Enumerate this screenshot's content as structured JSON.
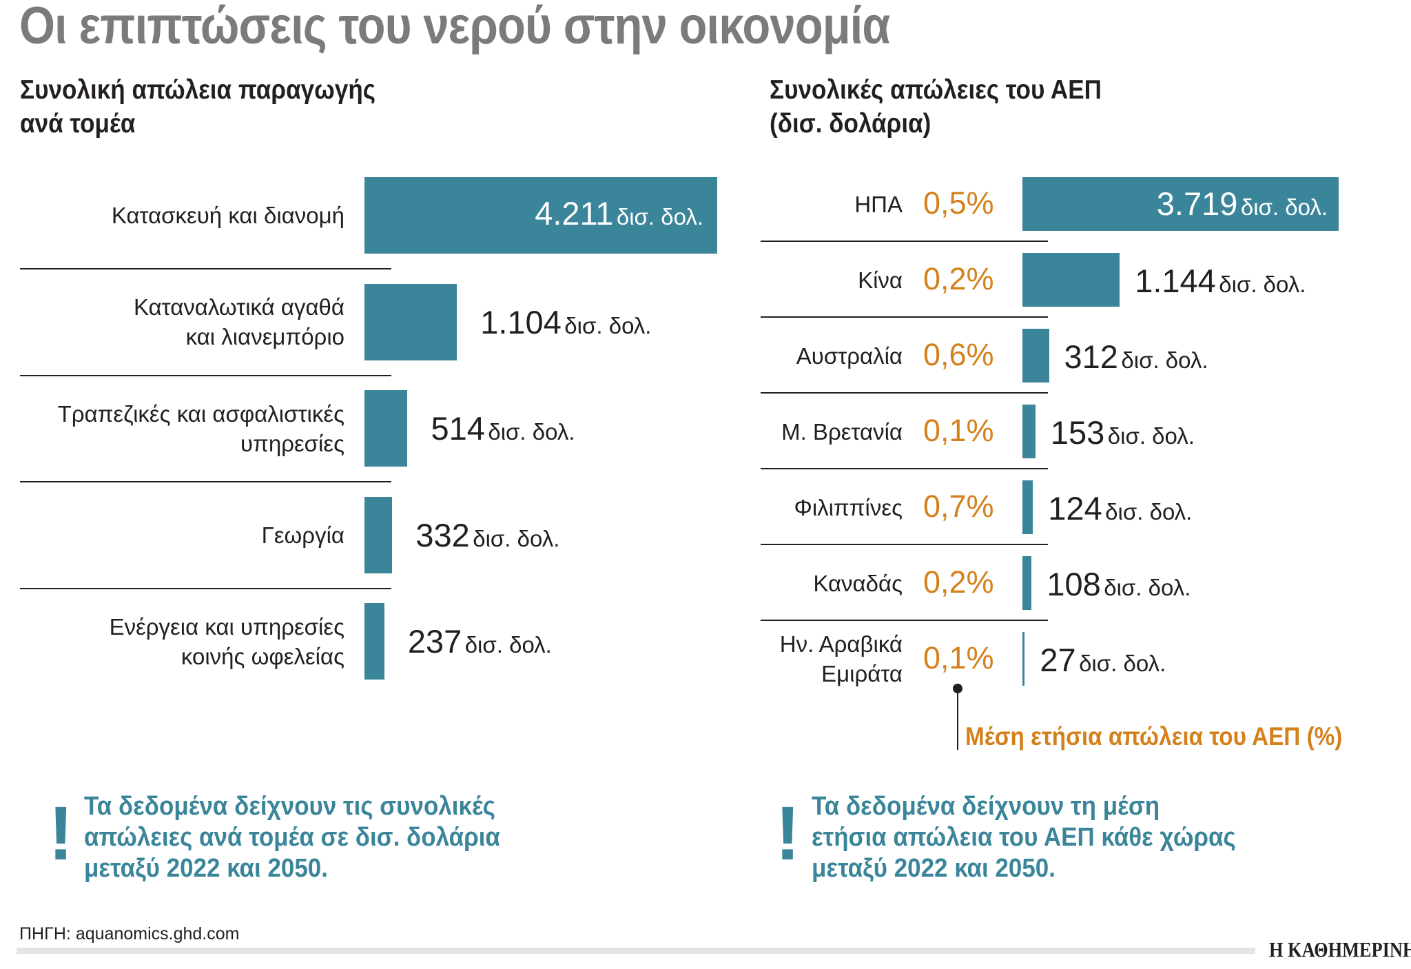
{
  "title": "Οι επιπτώσεις του νερού στην οικονομία",
  "chart_data": [
    {
      "type": "bar",
      "orientation": "horizontal",
      "title_line1": "Συνολική απώλεια παραγωγής",
      "title_line2": "ανά τομέα",
      "unit": "δισ. δολ.",
      "bar_color": "#3a8599",
      "categories": [
        [
          "Κατασκευή και διανομή"
        ],
        [
          "Καταναλωτικά αγαθά",
          "και λιανεμπόριο"
        ],
        [
          "Τραπεζικές και ασφαλιστικές",
          "υπηρεσίες"
        ],
        [
          "Γεωργία"
        ],
        [
          "Ενέργεια και υπηρεσίες",
          "κοινής ωφελείας"
        ]
      ],
      "values": [
        4211,
        1104,
        514,
        332,
        237
      ],
      "value_labels": [
        "4.211",
        "1.104",
        "514",
        "332",
        "237"
      ]
    },
    {
      "type": "bar",
      "orientation": "horizontal",
      "title_line1": "Συνολικές απώλειες του ΑΕΠ",
      "title_line2": "(δισ. δολάρια)",
      "unit": "δισ. δολ.",
      "bar_color": "#3a8599",
      "pct_color": "#d4811c",
      "categories": [
        [
          "ΗΠΑ"
        ],
        [
          "Κίνα"
        ],
        [
          "Αυστραλία"
        ],
        [
          "Μ. Βρετανία"
        ],
        [
          "Φιλιππίνες"
        ],
        [
          "Καναδάς"
        ],
        [
          "Ην. Αραβικά",
          "Εμιράτα"
        ]
      ],
      "values": [
        3719,
        1144,
        312,
        153,
        124,
        108,
        27
      ],
      "value_labels": [
        "3.719",
        "1.144",
        "312",
        "153",
        "124",
        "108",
        "27"
      ],
      "pct_labels": [
        "0,5%",
        "0,2%",
        "0,6%",
        "0,1%",
        "0,7%",
        "0,2%",
        "0,1%"
      ],
      "annotation": "Μέση ετήσια απώλεια του ΑΕΠ (%)"
    }
  ],
  "notes": {
    "left": [
      "Τα δεδομένα δείχνουν τις συνολικές",
      "απώλειες ανά τομέα σε δισ. δολάρια",
      "μεταξύ 2022 και 2050."
    ],
    "right": [
      "Τα δεδομένα δείχνουν τη μέση",
      "ετήσια απώλεια του ΑΕΠ κάθε χώρας",
      "μεταξύ 2022 και 2050."
    ],
    "mark": "!"
  },
  "source": "ΠΗΓΗ: aquanomics.ghd.com",
  "logo": "Η ΚΑΘΗΜΕΡΙΝΗ"
}
